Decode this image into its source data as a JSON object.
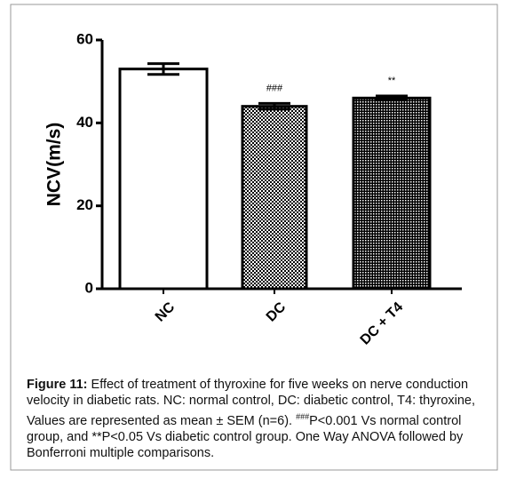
{
  "chart_data": {
    "type": "bar",
    "y_label": "NCV(m/s)",
    "categories": [
      "NC",
      "DC",
      "DC + T4"
    ],
    "values": [
      53,
      44,
      46
    ],
    "errors": [
      1.3,
      0.7,
      0.5
    ],
    "patterns": [
      "none",
      "checker",
      "dots"
    ],
    "annotations": [
      {
        "category": "DC",
        "text": "###"
      },
      {
        "category": "DC + T4",
        "text": "**"
      }
    ],
    "ylim": [
      0,
      60
    ],
    "yticks": [
      0,
      20,
      40,
      60
    ],
    "grid": false
  },
  "caption": {
    "label": "Figure 11:",
    "text_before": "Effect of treatment of thyroxine for five weeks on nerve conduction velocity in diabetic rats. NC: normal control, DC: diabetic control, T4: thyroxine, Values are represented as mean ± SEM (n=6). ",
    "superscript": "###",
    "text_after": "P<0.001 Vs normal control group, and **P<0.05 Vs diabetic control group. One Way ANOVA followed by Bonferroni multiple comparisons."
  }
}
